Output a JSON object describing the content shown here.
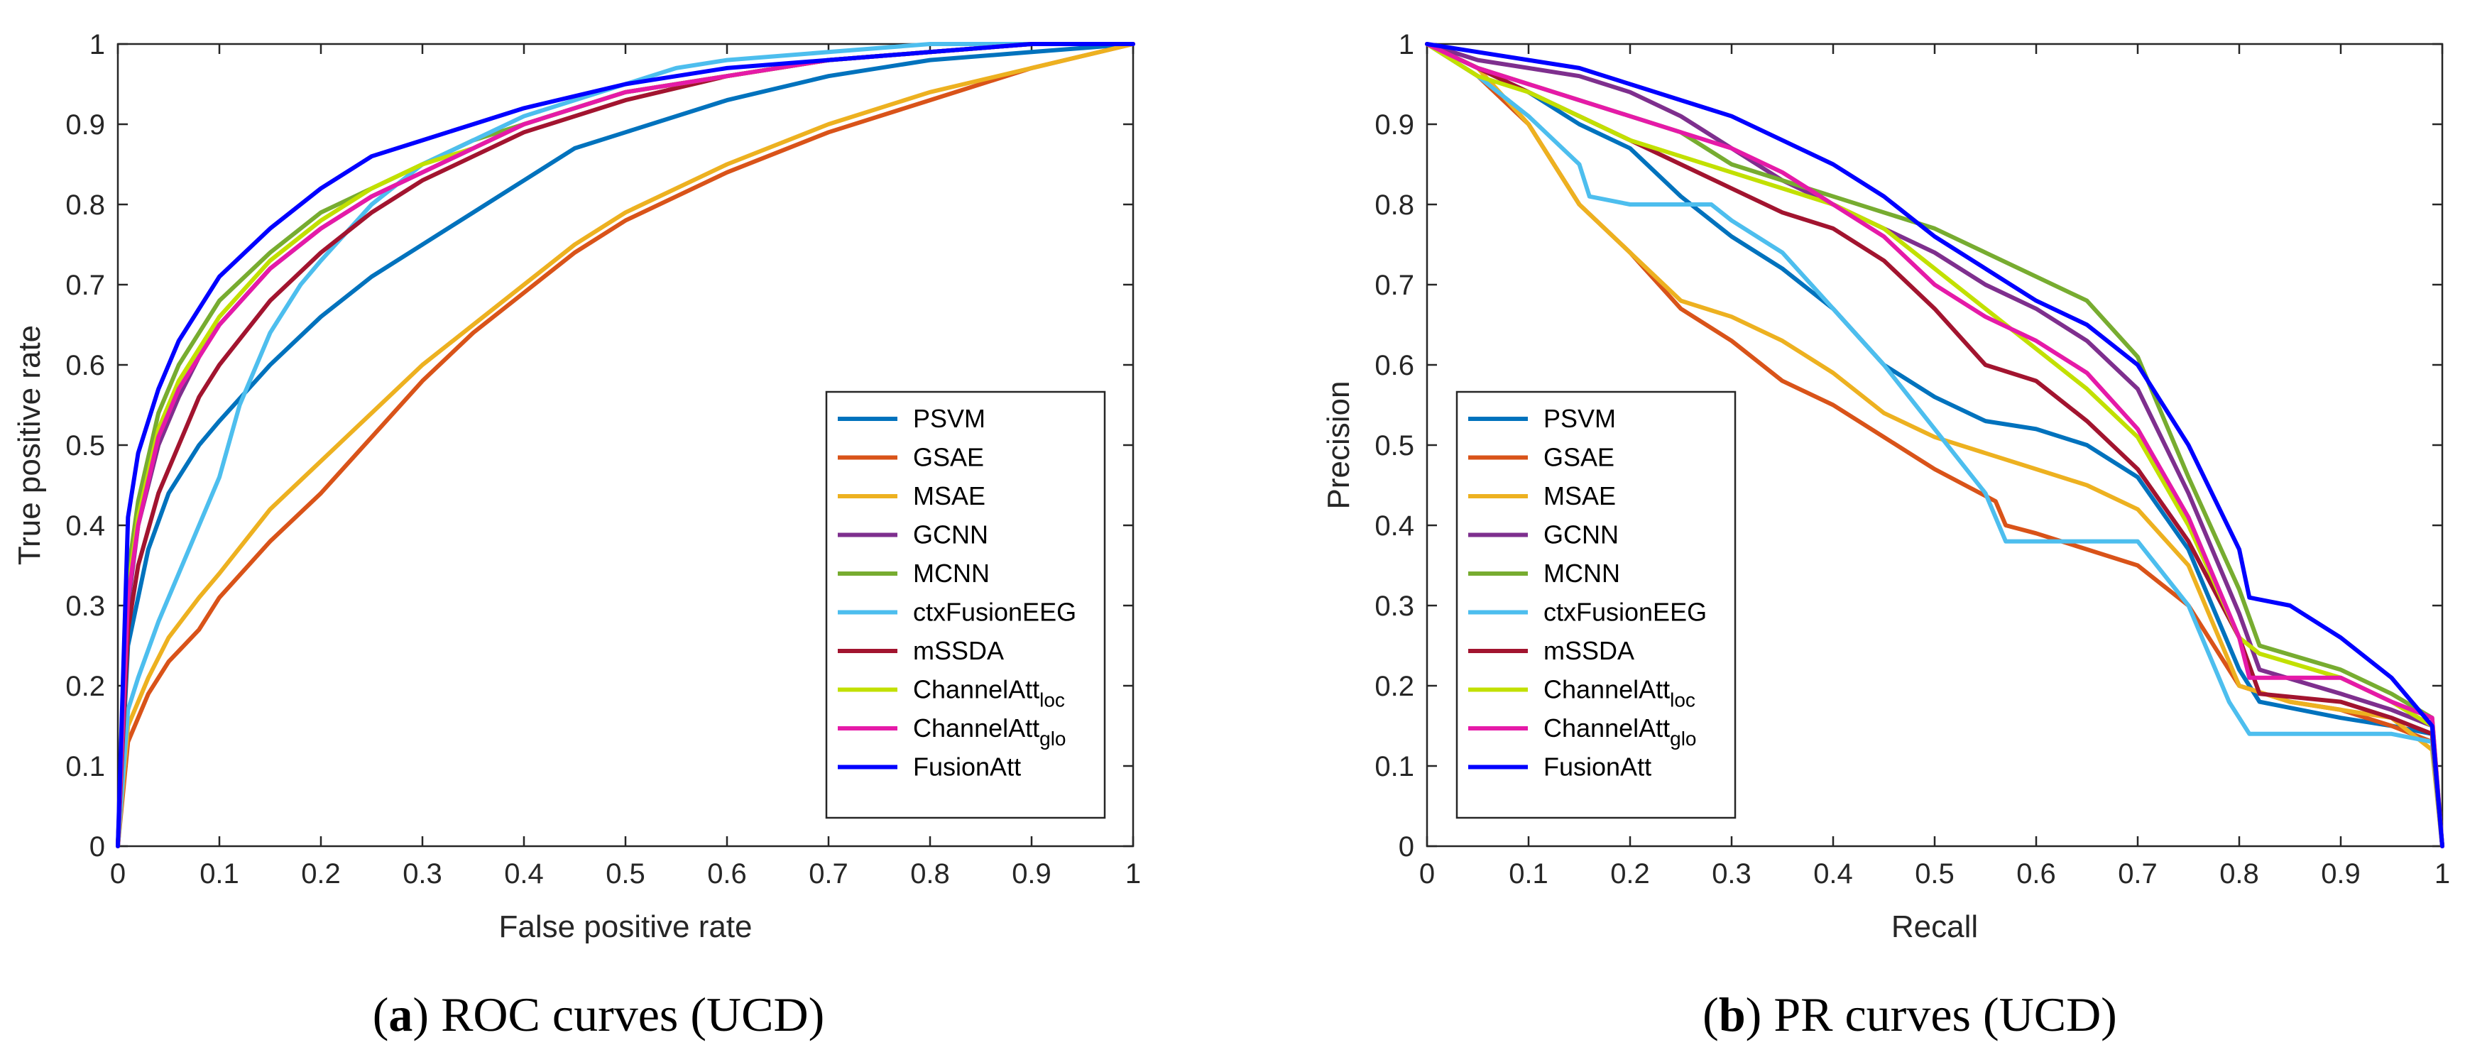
{
  "chart_data": [
    {
      "type": "line",
      "caption_letter": "a",
      "caption_text": "ROC curves (UCD)",
      "xlabel": "False positive rate",
      "ylabel": "True positive rate",
      "xlim": [
        0,
        1
      ],
      "ylim": [
        0,
        1
      ],
      "xticks": [
        "0",
        "0.1",
        "0.2",
        "0.3",
        "0.4",
        "0.5",
        "0.6",
        "0.7",
        "0.8",
        "0.9",
        "1"
      ],
      "yticks": [
        "0",
        "0.1",
        "0.2",
        "0.3",
        "0.4",
        "0.5",
        "0.6",
        "0.7",
        "0.8",
        "0.9",
        "1"
      ],
      "legend_position": "bottom-right",
      "series": [
        {
          "name": "PSVM",
          "sub": "",
          "color": "#0072BD",
          "x": [
            0,
            0.01,
            0.03,
            0.05,
            0.08,
            0.1,
            0.15,
            0.2,
            0.25,
            0.3,
            0.35,
            0.4,
            0.45,
            0.5,
            0.6,
            0.7,
            0.8,
            0.9,
            1
          ],
          "y": [
            0,
            0.25,
            0.37,
            0.44,
            0.5,
            0.53,
            0.6,
            0.66,
            0.71,
            0.75,
            0.79,
            0.83,
            0.87,
            0.89,
            0.93,
            0.96,
            0.98,
            0.99,
            1
          ]
        },
        {
          "name": "GSAE",
          "sub": "",
          "color": "#D95319",
          "x": [
            0,
            0.01,
            0.03,
            0.05,
            0.08,
            0.1,
            0.15,
            0.2,
            0.25,
            0.3,
            0.35,
            0.4,
            0.45,
            0.5,
            0.6,
            0.7,
            0.8,
            0.9,
            1
          ],
          "y": [
            0,
            0.13,
            0.19,
            0.23,
            0.27,
            0.31,
            0.38,
            0.44,
            0.51,
            0.58,
            0.64,
            0.69,
            0.74,
            0.78,
            0.84,
            0.89,
            0.93,
            0.97,
            1
          ]
        },
        {
          "name": "MSAE",
          "sub": "",
          "color": "#EDB120",
          "x": [
            0,
            0.01,
            0.03,
            0.05,
            0.08,
            0.1,
            0.15,
            0.2,
            0.25,
            0.3,
            0.35,
            0.4,
            0.45,
            0.5,
            0.6,
            0.7,
            0.8,
            0.9,
            1
          ],
          "y": [
            0,
            0.15,
            0.21,
            0.26,
            0.31,
            0.34,
            0.42,
            0.48,
            0.54,
            0.6,
            0.65,
            0.7,
            0.75,
            0.79,
            0.85,
            0.9,
            0.94,
            0.97,
            1
          ]
        },
        {
          "name": "GCNN",
          "sub": "",
          "color": "#7E2F8E",
          "x": [
            0,
            0.01,
            0.02,
            0.04,
            0.06,
            0.08,
            0.1,
            0.15,
            0.2,
            0.25,
            0.3,
            0.35,
            0.4,
            0.5,
            0.6,
            0.7,
            0.8,
            0.9,
            1
          ],
          "y": [
            0,
            0.3,
            0.4,
            0.5,
            0.56,
            0.61,
            0.65,
            0.72,
            0.77,
            0.81,
            0.84,
            0.87,
            0.9,
            0.94,
            0.96,
            0.98,
            0.99,
            1,
            1
          ]
        },
        {
          "name": "MCNN",
          "sub": "",
          "color": "#77AC30",
          "x": [
            0,
            0.01,
            0.02,
            0.04,
            0.06,
            0.08,
            0.1,
            0.15,
            0.2,
            0.25,
            0.3,
            0.35,
            0.4,
            0.5,
            0.6,
            0.7,
            0.8,
            0.9,
            1
          ],
          "y": [
            0,
            0.34,
            0.43,
            0.54,
            0.6,
            0.64,
            0.68,
            0.74,
            0.79,
            0.82,
            0.85,
            0.88,
            0.9,
            0.94,
            0.96,
            0.98,
            0.99,
            1,
            1
          ]
        },
        {
          "name": "ctxFusionEEG",
          "sub": "",
          "color": "#4DBEEE",
          "x": [
            0,
            0.01,
            0.02,
            0.04,
            0.06,
            0.08,
            0.1,
            0.12,
            0.15,
            0.18,
            0.2,
            0.25,
            0.3,
            0.4,
            0.5,
            0.55,
            0.6,
            0.7,
            0.8,
            0.9,
            1
          ],
          "y": [
            0,
            0.17,
            0.21,
            0.28,
            0.34,
            0.4,
            0.46,
            0.55,
            0.64,
            0.7,
            0.73,
            0.8,
            0.85,
            0.91,
            0.95,
            0.97,
            0.98,
            0.99,
            1,
            1,
            1
          ]
        },
        {
          "name": "mSSDA",
          "sub": "",
          "color": "#A2142F",
          "x": [
            0,
            0.01,
            0.02,
            0.04,
            0.06,
            0.08,
            0.1,
            0.15,
            0.2,
            0.25,
            0.3,
            0.35,
            0.4,
            0.5,
            0.6,
            0.7,
            0.8,
            0.9,
            1
          ],
          "y": [
            0,
            0.27,
            0.35,
            0.44,
            0.5,
            0.56,
            0.6,
            0.68,
            0.74,
            0.79,
            0.83,
            0.86,
            0.89,
            0.93,
            0.96,
            0.98,
            0.99,
            1,
            1
          ]
        },
        {
          "name": "ChannelAtt",
          "sub": "loc",
          "color": "#C2E000",
          "x": [
            0,
            0.01,
            0.02,
            0.04,
            0.06,
            0.08,
            0.1,
            0.15,
            0.2,
            0.25,
            0.3,
            0.35,
            0.4,
            0.5,
            0.6,
            0.7,
            0.8,
            0.9,
            1
          ],
          "y": [
            0,
            0.32,
            0.41,
            0.52,
            0.58,
            0.62,
            0.66,
            0.73,
            0.78,
            0.82,
            0.85,
            0.87,
            0.9,
            0.94,
            0.96,
            0.98,
            0.99,
            1,
            1
          ]
        },
        {
          "name": "ChannelAtt",
          "sub": "glo",
          "color": "#E51AA8",
          "x": [
            0,
            0.01,
            0.02,
            0.04,
            0.06,
            0.08,
            0.1,
            0.15,
            0.2,
            0.25,
            0.3,
            0.35,
            0.4,
            0.5,
            0.6,
            0.7,
            0.8,
            0.9,
            1
          ],
          "y": [
            0,
            0.31,
            0.4,
            0.51,
            0.57,
            0.61,
            0.65,
            0.72,
            0.77,
            0.81,
            0.84,
            0.87,
            0.9,
            0.94,
            0.96,
            0.98,
            0.99,
            1,
            1
          ]
        },
        {
          "name": "FusionAtt",
          "sub": "",
          "color": "#0000FF",
          "x": [
            0,
            0.01,
            0.02,
            0.04,
            0.06,
            0.08,
            0.1,
            0.15,
            0.2,
            0.25,
            0.3,
            0.35,
            0.4,
            0.5,
            0.6,
            0.7,
            0.8,
            0.9,
            1
          ],
          "y": [
            0,
            0.41,
            0.49,
            0.57,
            0.63,
            0.67,
            0.71,
            0.77,
            0.82,
            0.86,
            0.88,
            0.9,
            0.92,
            0.95,
            0.97,
            0.98,
            0.99,
            1,
            1
          ]
        }
      ]
    },
    {
      "type": "line",
      "caption_letter": "b",
      "caption_text": "PR curves (UCD)",
      "xlabel": "Recall",
      "ylabel": "Precision",
      "xlim": [
        0,
        1
      ],
      "ylim": [
        0,
        1
      ],
      "xticks": [
        "0",
        "0.1",
        "0.2",
        "0.3",
        "0.4",
        "0.5",
        "0.6",
        "0.7",
        "0.8",
        "0.9",
        "1"
      ],
      "yticks": [
        "0",
        "0.1",
        "0.2",
        "0.3",
        "0.4",
        "0.5",
        "0.6",
        "0.7",
        "0.8",
        "0.9",
        "1"
      ],
      "legend_position": "bottom-left",
      "series": [
        {
          "name": "PSVM",
          "sub": "",
          "color": "#0072BD",
          "x": [
            0,
            0.05,
            0.1,
            0.15,
            0.2,
            0.25,
            0.3,
            0.35,
            0.4,
            0.45,
            0.5,
            0.55,
            0.6,
            0.65,
            0.7,
            0.75,
            0.8,
            0.82,
            0.9,
            0.95,
            0.99,
            1
          ],
          "y": [
            1,
            0.97,
            0.94,
            0.9,
            0.87,
            0.81,
            0.76,
            0.72,
            0.67,
            0.6,
            0.56,
            0.53,
            0.52,
            0.5,
            0.46,
            0.37,
            0.22,
            0.18,
            0.16,
            0.15,
            0.14,
            0
          ]
        },
        {
          "name": "GSAE",
          "sub": "",
          "color": "#D95319",
          "x": [
            0,
            0.05,
            0.1,
            0.15,
            0.2,
            0.25,
            0.3,
            0.35,
            0.4,
            0.45,
            0.5,
            0.56,
            0.57,
            0.6,
            0.65,
            0.7,
            0.75,
            0.8,
            0.85,
            0.9,
            0.95,
            0.99,
            1
          ],
          "y": [
            1,
            0.96,
            0.9,
            0.8,
            0.74,
            0.67,
            0.63,
            0.58,
            0.55,
            0.51,
            0.47,
            0.43,
            0.4,
            0.39,
            0.37,
            0.35,
            0.3,
            0.2,
            0.18,
            0.17,
            0.15,
            0.13,
            0
          ]
        },
        {
          "name": "MSAE",
          "sub": "",
          "color": "#EDB120",
          "x": [
            0,
            0.05,
            0.1,
            0.15,
            0.2,
            0.25,
            0.3,
            0.35,
            0.4,
            0.45,
            0.5,
            0.55,
            0.6,
            0.65,
            0.7,
            0.75,
            0.8,
            0.85,
            0.9,
            0.95,
            0.99,
            1
          ],
          "y": [
            1,
            0.97,
            0.9,
            0.8,
            0.74,
            0.68,
            0.66,
            0.63,
            0.59,
            0.54,
            0.51,
            0.49,
            0.47,
            0.45,
            0.42,
            0.35,
            0.2,
            0.18,
            0.17,
            0.16,
            0.12,
            0
          ]
        },
        {
          "name": "GCNN",
          "sub": "",
          "color": "#7E2F8E",
          "x": [
            0,
            0.05,
            0.1,
            0.15,
            0.2,
            0.25,
            0.3,
            0.35,
            0.4,
            0.45,
            0.5,
            0.55,
            0.6,
            0.65,
            0.7,
            0.75,
            0.8,
            0.82,
            0.9,
            0.95,
            0.99,
            1
          ],
          "y": [
            1,
            0.98,
            0.97,
            0.96,
            0.94,
            0.91,
            0.87,
            0.83,
            0.8,
            0.77,
            0.74,
            0.7,
            0.67,
            0.63,
            0.57,
            0.44,
            0.29,
            0.22,
            0.19,
            0.17,
            0.15,
            0
          ]
        },
        {
          "name": "MCNN",
          "sub": "",
          "color": "#77AC30",
          "x": [
            0,
            0.05,
            0.1,
            0.15,
            0.2,
            0.25,
            0.3,
            0.35,
            0.4,
            0.45,
            0.5,
            0.55,
            0.6,
            0.65,
            0.7,
            0.75,
            0.8,
            0.82,
            0.9,
            0.95,
            0.99,
            1
          ],
          "y": [
            1,
            0.97,
            0.95,
            0.93,
            0.91,
            0.89,
            0.85,
            0.83,
            0.81,
            0.79,
            0.77,
            0.74,
            0.71,
            0.68,
            0.61,
            0.46,
            0.32,
            0.25,
            0.22,
            0.19,
            0.16,
            0
          ]
        },
        {
          "name": "ctxFusionEEG",
          "sub": "",
          "color": "#4DBEEE",
          "x": [
            0,
            0.05,
            0.1,
            0.15,
            0.16,
            0.2,
            0.28,
            0.3,
            0.35,
            0.4,
            0.45,
            0.5,
            0.55,
            0.57,
            0.6,
            0.65,
            0.7,
            0.75,
            0.79,
            0.81,
            0.9,
            0.95,
            0.99,
            1
          ],
          "y": [
            1,
            0.96,
            0.91,
            0.85,
            0.81,
            0.8,
            0.8,
            0.78,
            0.74,
            0.67,
            0.6,
            0.52,
            0.44,
            0.38,
            0.38,
            0.38,
            0.38,
            0.3,
            0.18,
            0.14,
            0.14,
            0.14,
            0.13,
            0
          ]
        },
        {
          "name": "mSSDA",
          "sub": "",
          "color": "#A2142F",
          "x": [
            0,
            0.05,
            0.1,
            0.15,
            0.2,
            0.25,
            0.3,
            0.35,
            0.4,
            0.45,
            0.5,
            0.55,
            0.6,
            0.65,
            0.7,
            0.75,
            0.8,
            0.82,
            0.9,
            0.95,
            0.99,
            1
          ],
          "y": [
            1,
            0.97,
            0.94,
            0.91,
            0.88,
            0.85,
            0.82,
            0.79,
            0.77,
            0.73,
            0.67,
            0.6,
            0.58,
            0.53,
            0.47,
            0.38,
            0.26,
            0.19,
            0.18,
            0.16,
            0.14,
            0
          ]
        },
        {
          "name": "ChannelAtt",
          "sub": "loc",
          "color": "#C2E000",
          "x": [
            0,
            0.05,
            0.1,
            0.15,
            0.2,
            0.25,
            0.3,
            0.35,
            0.4,
            0.45,
            0.5,
            0.55,
            0.6,
            0.65,
            0.7,
            0.75,
            0.8,
            0.82,
            0.9,
            0.95,
            0.99,
            1
          ],
          "y": [
            1,
            0.96,
            0.94,
            0.91,
            0.88,
            0.86,
            0.84,
            0.82,
            0.8,
            0.77,
            0.72,
            0.67,
            0.62,
            0.57,
            0.51,
            0.4,
            0.26,
            0.24,
            0.21,
            0.18,
            0.15,
            0
          ]
        },
        {
          "name": "ChannelAtt",
          "sub": "glo",
          "color": "#E51AA8",
          "x": [
            0,
            0.05,
            0.1,
            0.15,
            0.2,
            0.25,
            0.3,
            0.35,
            0.4,
            0.45,
            0.5,
            0.55,
            0.6,
            0.65,
            0.7,
            0.75,
            0.8,
            0.81,
            0.9,
            0.95,
            0.99,
            1
          ],
          "y": [
            1,
            0.97,
            0.95,
            0.93,
            0.91,
            0.89,
            0.87,
            0.84,
            0.8,
            0.76,
            0.7,
            0.66,
            0.63,
            0.59,
            0.52,
            0.41,
            0.26,
            0.21,
            0.21,
            0.18,
            0.16,
            0
          ]
        },
        {
          "name": "FusionAtt",
          "sub": "",
          "color": "#0000FF",
          "x": [
            0,
            0.05,
            0.1,
            0.15,
            0.2,
            0.25,
            0.3,
            0.35,
            0.4,
            0.45,
            0.5,
            0.55,
            0.6,
            0.65,
            0.7,
            0.75,
            0.8,
            0.81,
            0.85,
            0.9,
            0.95,
            0.99,
            1
          ],
          "y": [
            1,
            0.99,
            0.98,
            0.97,
            0.95,
            0.93,
            0.91,
            0.88,
            0.85,
            0.81,
            0.76,
            0.72,
            0.68,
            0.65,
            0.6,
            0.5,
            0.37,
            0.31,
            0.3,
            0.26,
            0.21,
            0.15,
            0
          ]
        }
      ]
    }
  ]
}
